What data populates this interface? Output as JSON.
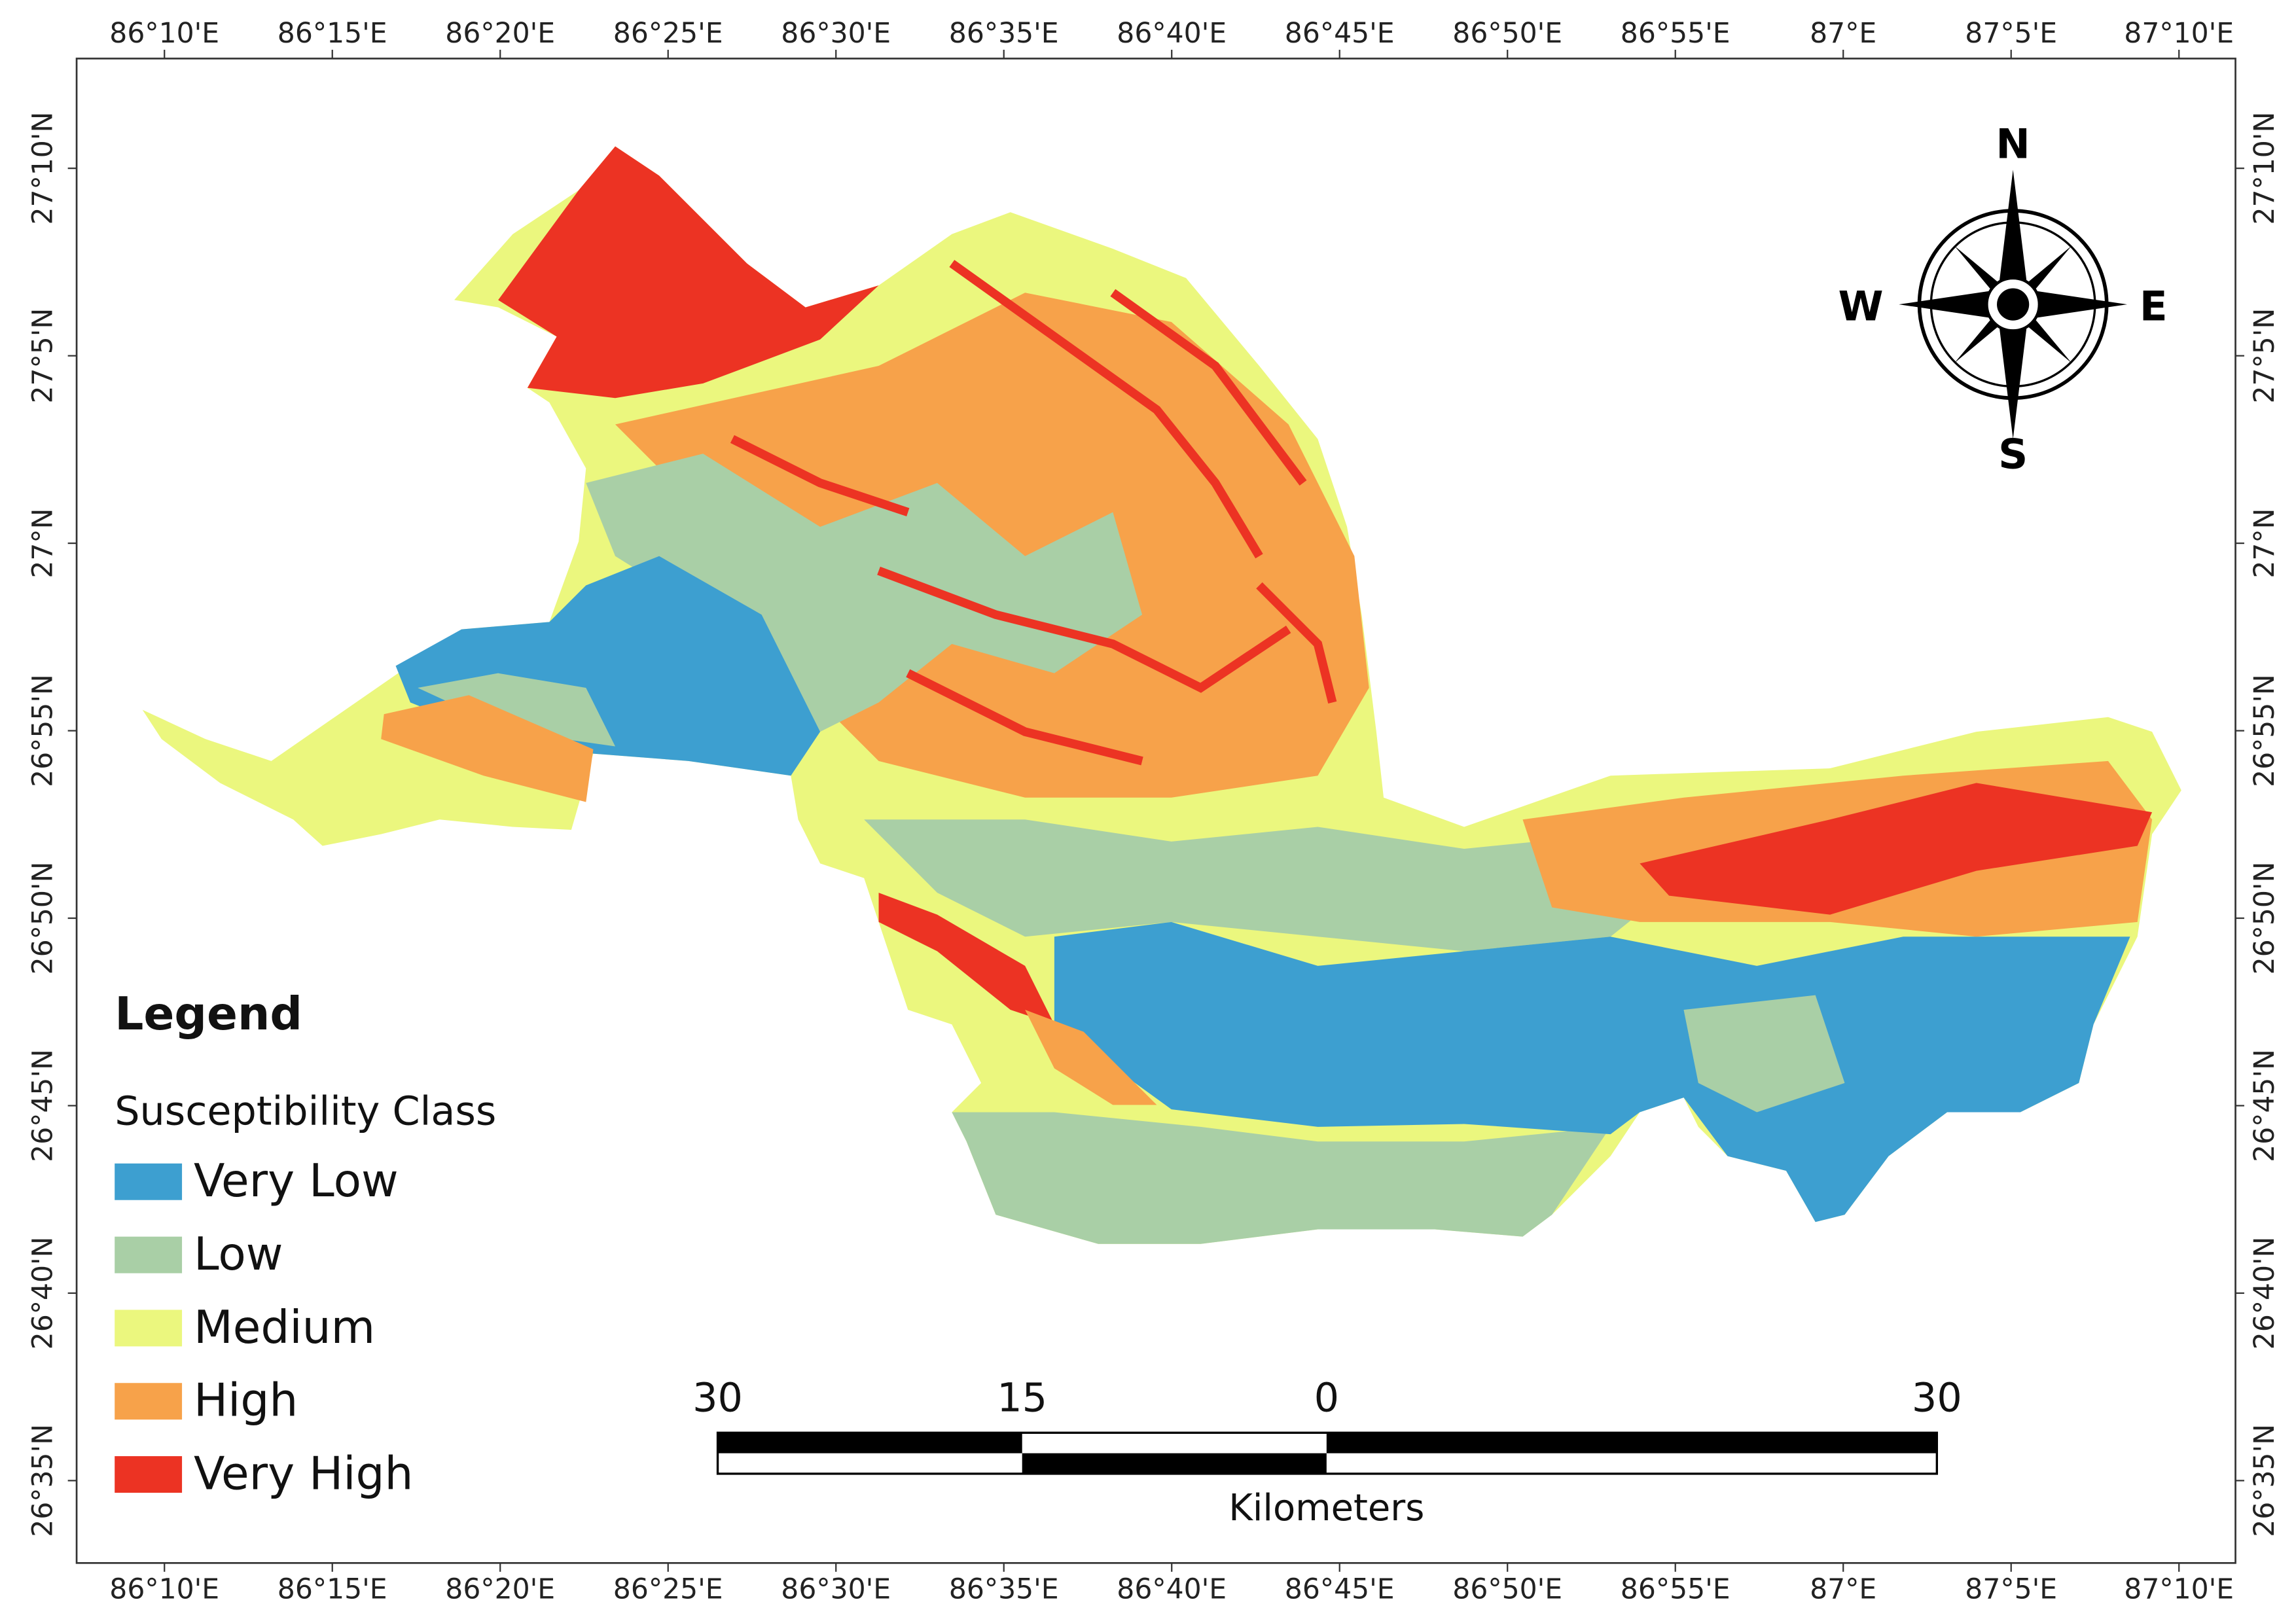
{
  "map": {
    "top_axis_labels": [
      "86°10'E",
      "86°15'E",
      "86°20'E",
      "86°25'E",
      "86°30'E",
      "86°35'E",
      "86°40'E",
      "86°45'E",
      "86°50'E",
      "86°55'E",
      "87°E",
      "87°5'E",
      "87°10'E"
    ],
    "bottom_axis_labels": [
      "86°10'E",
      "86°15'E",
      "86°20'E",
      "86°25'E",
      "86°30'E",
      "86°35'E",
      "86°40'E",
      "86°45'E",
      "86°50'E",
      "86°55'E",
      "87°E",
      "87°5'E",
      "87°10'E"
    ],
    "left_axis_labels": [
      "27°10'N",
      "27°5'N",
      "27°N",
      "26°55'N",
      "26°50'N",
      "26°45'N",
      "26°40'N",
      "26°35'N"
    ],
    "right_axis_labels": [
      "27°10'N",
      "27°5'N",
      "27°N",
      "26°55'N",
      "26°50'N",
      "26°45'N",
      "26°40'N",
      "26°35'N"
    ]
  },
  "legend": {
    "title": "Legend",
    "subtitle": "Susceptibility Class",
    "classes": [
      {
        "label": "Very Low",
        "color": "#3d9fd0"
      },
      {
        "label": "Low",
        "color": "#a9cfa6"
      },
      {
        "label": "Medium",
        "color": "#ebf77e"
      },
      {
        "label": "High",
        "color": "#f7a24a"
      },
      {
        "label": "Very High",
        "color": "#ec3323"
      }
    ]
  },
  "scale_bar": {
    "labels": [
      "30",
      "15",
      "0",
      "30"
    ],
    "unit": "Kilometers"
  },
  "compass": {
    "n": "N",
    "e": "E",
    "s": "S",
    "w": "W"
  }
}
